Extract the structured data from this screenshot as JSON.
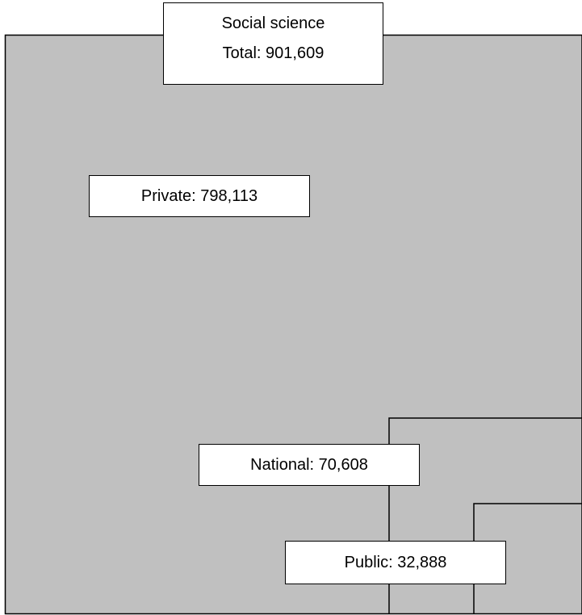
{
  "chart_data": {
    "type": "nested-area",
    "title": "Social science",
    "total": {
      "label": "Total",
      "value": 901609,
      "display": "Total: 901,609"
    },
    "segments": [
      {
        "name": "Private",
        "value": 798113,
        "display": "Private: 798,113"
      },
      {
        "name": "National",
        "value": 70608,
        "display": "National: 70,608"
      },
      {
        "name": "Public",
        "value": 32888,
        "display": "Public: 32,888"
      }
    ]
  },
  "colors": {
    "fill": "#c0c0c0",
    "stroke": "#000000",
    "label_background": "#ffffff"
  }
}
